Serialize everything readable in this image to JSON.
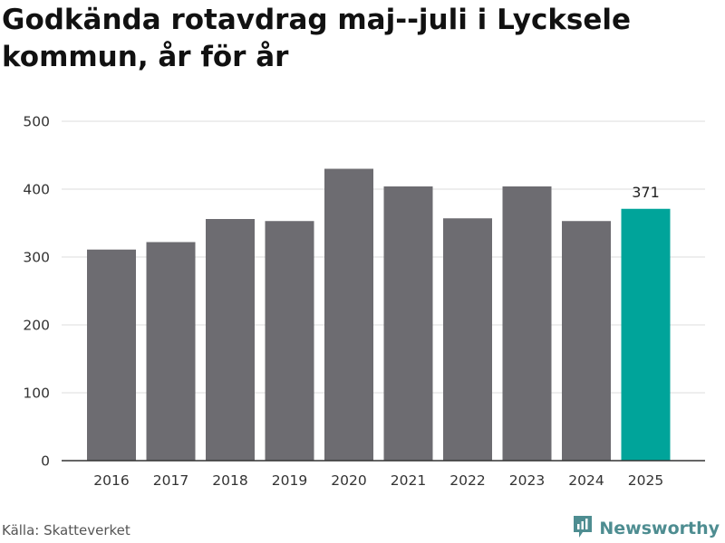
{
  "header": {
    "title": "Godkända rotavdrag maj--juli i Lycksele kommun, år för år"
  },
  "footer": {
    "source": "Källa: Skatteverket",
    "brand": "Newsworthy",
    "brand_icon": "newsworthy-logo-icon"
  },
  "colors": {
    "bar_default": "#6d6c71",
    "bar_highlight": "#00a49a",
    "grid": "#dcdcdc",
    "axis": "#333333",
    "brand": "#4e8d91"
  },
  "chart_data": {
    "type": "bar",
    "title": "Godkända rotavdrag maj--juli i Lycksele kommun, år för år",
    "xlabel": "",
    "ylabel": "",
    "categories": [
      "2016",
      "2017",
      "2018",
      "2019",
      "2020",
      "2021",
      "2022",
      "2023",
      "2024",
      "2025"
    ],
    "values": [
      311,
      322,
      356,
      353,
      430,
      404,
      357,
      404,
      353,
      371
    ],
    "ylim": [
      0,
      500
    ],
    "yticks": [
      0,
      100,
      200,
      300,
      400,
      500
    ],
    "grid": true,
    "highlight_index": 9,
    "data_labels": [
      {
        "index": 9,
        "text": "371"
      }
    ]
  }
}
